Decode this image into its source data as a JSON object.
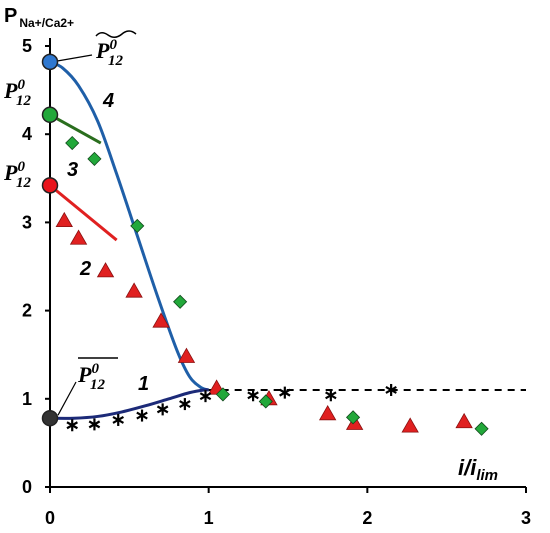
{
  "chart_data": {
    "type": "scatter",
    "title": "",
    "ylabel": {
      "main": "P",
      "sub": "Na+/Ca2+"
    },
    "xlabel": {
      "main": "i/i",
      "sub": "lim"
    },
    "xlim": [
      0,
      3
    ],
    "ylim": [
      0,
      5
    ],
    "x_ticks": [
      "0",
      "1",
      "2",
      "3"
    ],
    "y_ticks": [
      "0",
      "1",
      "2",
      "3",
      "4",
      "5"
    ],
    "legend": "none",
    "colors": {
      "curve_blue": "#1f5fa8",
      "curve_navy": "#1c2a78",
      "curve_red": "#e02020",
      "curve_green": "#2a6e1e",
      "marker_red": "#e02020",
      "marker_green": "#22a83a",
      "marker_blue_circle": "#2f78d0",
      "marker_green_circle": "#22a83a",
      "marker_red_circle": "#e8141c",
      "marker_black_circle": "#333333"
    },
    "annotations": {
      "p_tilde": {
        "base": "P",
        "sup": "0",
        "sub": "12",
        "accent": "tilde"
      },
      "p_green": {
        "base": "P",
        "sup": "0",
        "sub": "12"
      },
      "p_red": {
        "base": "P",
        "sup": "0",
        "sub": "12"
      },
      "p_bar": {
        "base": "P",
        "sup": "0",
        "sub": "12",
        "accent": "overline"
      }
    },
    "curve_labels": [
      "1",
      "2",
      "3",
      "4"
    ],
    "lines": [
      {
        "id": "curve4",
        "color": "#1f5fa8",
        "style": "solid",
        "x": [
          0,
          0.08,
          0.18,
          0.3,
          0.42,
          0.55,
          0.68,
          0.8,
          0.88,
          0.95,
          1.0
        ],
        "y": [
          4.82,
          4.75,
          4.55,
          4.15,
          3.55,
          2.85,
          2.15,
          1.55,
          1.25,
          1.13,
          1.1
        ]
      },
      {
        "id": "curve1",
        "color": "#1c2a78",
        "style": "solid",
        "x": [
          0,
          0.15,
          0.3,
          0.45,
          0.6,
          0.75,
          0.88,
          0.97,
          1.0
        ],
        "y": [
          0.78,
          0.78,
          0.8,
          0.85,
          0.92,
          1.0,
          1.07,
          1.1,
          1.1
        ]
      },
      {
        "id": "curve1-extension",
        "color": "#000000",
        "style": "dashed",
        "x": [
          1.0,
          3.0
        ],
        "y": [
          1.1,
          1.1
        ]
      },
      {
        "id": "curve2",
        "color": "#e02020",
        "style": "solid",
        "x": [
          0,
          0.42
        ],
        "y": [
          3.42,
          2.8
        ]
      },
      {
        "id": "curve3",
        "color": "#2a6e1e",
        "style": "solid",
        "x": [
          0,
          0.32
        ],
        "y": [
          4.22,
          3.9
        ]
      }
    ],
    "series": [
      {
        "id": "red-triangles",
        "marker": "triangle",
        "color": "#e02020",
        "points": [
          [
            0.09,
            3.02
          ],
          [
            0.18,
            2.82
          ],
          [
            0.35,
            2.45
          ],
          [
            0.53,
            2.22
          ],
          [
            0.7,
            1.88
          ],
          [
            0.86,
            1.48
          ],
          [
            1.05,
            1.12
          ],
          [
            1.38,
            1.0
          ],
          [
            1.75,
            0.83
          ],
          [
            1.92,
            0.72
          ],
          [
            2.27,
            0.69
          ],
          [
            2.61,
            0.74
          ]
        ]
      },
      {
        "id": "green-diamonds",
        "marker": "diamond",
        "color": "#22a83a",
        "points": [
          [
            0.14,
            3.9
          ],
          [
            0.28,
            3.72
          ],
          [
            0.55,
            2.96
          ],
          [
            0.82,
            2.1
          ],
          [
            1.09,
            1.05
          ],
          [
            1.36,
            0.97
          ],
          [
            1.91,
            0.79
          ],
          [
            2.72,
            0.66
          ]
        ]
      },
      {
        "id": "black-stars",
        "marker": "star",
        "color": "#000000",
        "points": [
          [
            0.14,
            0.7
          ],
          [
            0.28,
            0.71
          ],
          [
            0.43,
            0.76
          ],
          [
            0.58,
            0.81
          ],
          [
            0.71,
            0.88
          ],
          [
            0.85,
            0.94
          ],
          [
            0.98,
            1.03
          ],
          [
            1.28,
            1.04
          ],
          [
            1.48,
            1.07
          ],
          [
            1.77,
            1.04
          ],
          [
            2.15,
            1.1
          ]
        ]
      },
      {
        "id": "intercept-circles",
        "marker": "circle",
        "points": [
          [
            0,
            4.82,
            "#2f78d0"
          ],
          [
            0,
            4.22,
            "#22a83a"
          ],
          [
            0,
            3.42,
            "#e8141c"
          ],
          [
            0,
            0.78,
            "#333333"
          ]
        ]
      }
    ]
  }
}
